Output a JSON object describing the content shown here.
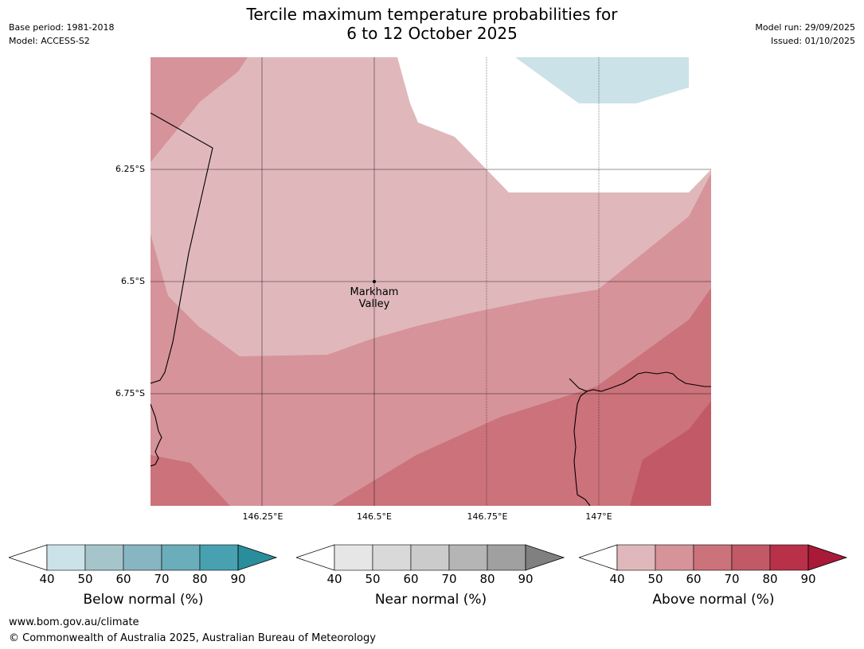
{
  "header": {
    "title_line1": "Tercile maximum temperature probabilities for",
    "title_line2": "6 to 12 October 2025",
    "base_period": "Base period: 1981-2018",
    "model": "Model: ACCESS-S2",
    "model_run": "Model run: 29/09/2025",
    "issued": "Issued: 01/10/2025"
  },
  "map": {
    "lat_labels": [
      "6.25°S",
      "6.5°S",
      "6.75°S"
    ],
    "lon_labels": [
      "146.25°E",
      "146.5°E",
      "146.75°E",
      "147°E"
    ],
    "place": {
      "line1": "Markham",
      "line2": "Valley"
    }
  },
  "legends": [
    {
      "title": "Below normal (%)",
      "ticks": [
        "40",
        "50",
        "60",
        "70",
        "80",
        "90"
      ],
      "colors": [
        "#ffffff",
        "#cae2e8",
        "#a6c5cb",
        "#88b5c2",
        "#6aadbb",
        "#48a1b0",
        "#2a8d9c"
      ]
    },
    {
      "title": "Near normal (%)",
      "ticks": [
        "40",
        "50",
        "60",
        "70",
        "80",
        "90"
      ],
      "colors": [
        "#ffffff",
        "#e6e6e6",
        "#d9d9d9",
        "#cbcbcb",
        "#b5b5b5",
        "#a0a0a0",
        "#808080"
      ]
    },
    {
      "title": "Above normal (%)",
      "ticks": [
        "40",
        "50",
        "60",
        "70",
        "80",
        "90"
      ],
      "colors": [
        "#ffffff",
        "#e0b8bc",
        "#d6939a",
        "#cb727a",
        "#c15966",
        "#b93049",
        "#a81a38"
      ]
    }
  ],
  "footer": {
    "url": "www.bom.gov.au/climate",
    "copyright": "© Commonwealth of Australia 2025, Australian Bureau of Meteorology"
  }
}
